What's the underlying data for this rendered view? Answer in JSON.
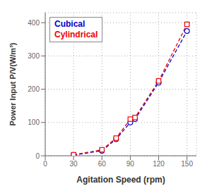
{
  "chart_data": {
    "type": "line",
    "x": [
      30,
      60,
      75,
      90,
      95,
      120,
      150
    ],
    "series": [
      {
        "name": "Cubical",
        "color": "#0000cc",
        "values": [
          2,
          15,
          50,
          100,
          110,
          220,
          375
        ],
        "marker": "circle",
        "line_style": "dashed"
      },
      {
        "name": "Cylindrical",
        "color": "#ee0000",
        "values": [
          3,
          18,
          53,
          110,
          115,
          225,
          395
        ],
        "marker": "square",
        "line_style": "dashed"
      }
    ],
    "xlabel": "Agitation Speed (rpm)",
    "ylabel": "Power Input P/V(W/m³)",
    "xlim": [
      0,
      160
    ],
    "ylim": [
      0,
      430
    ],
    "xticks": [
      0,
      30,
      60,
      90,
      120,
      150
    ],
    "yticks": [
      0,
      100,
      200,
      300,
      400
    ],
    "grid": true,
    "legend": "upper left"
  }
}
